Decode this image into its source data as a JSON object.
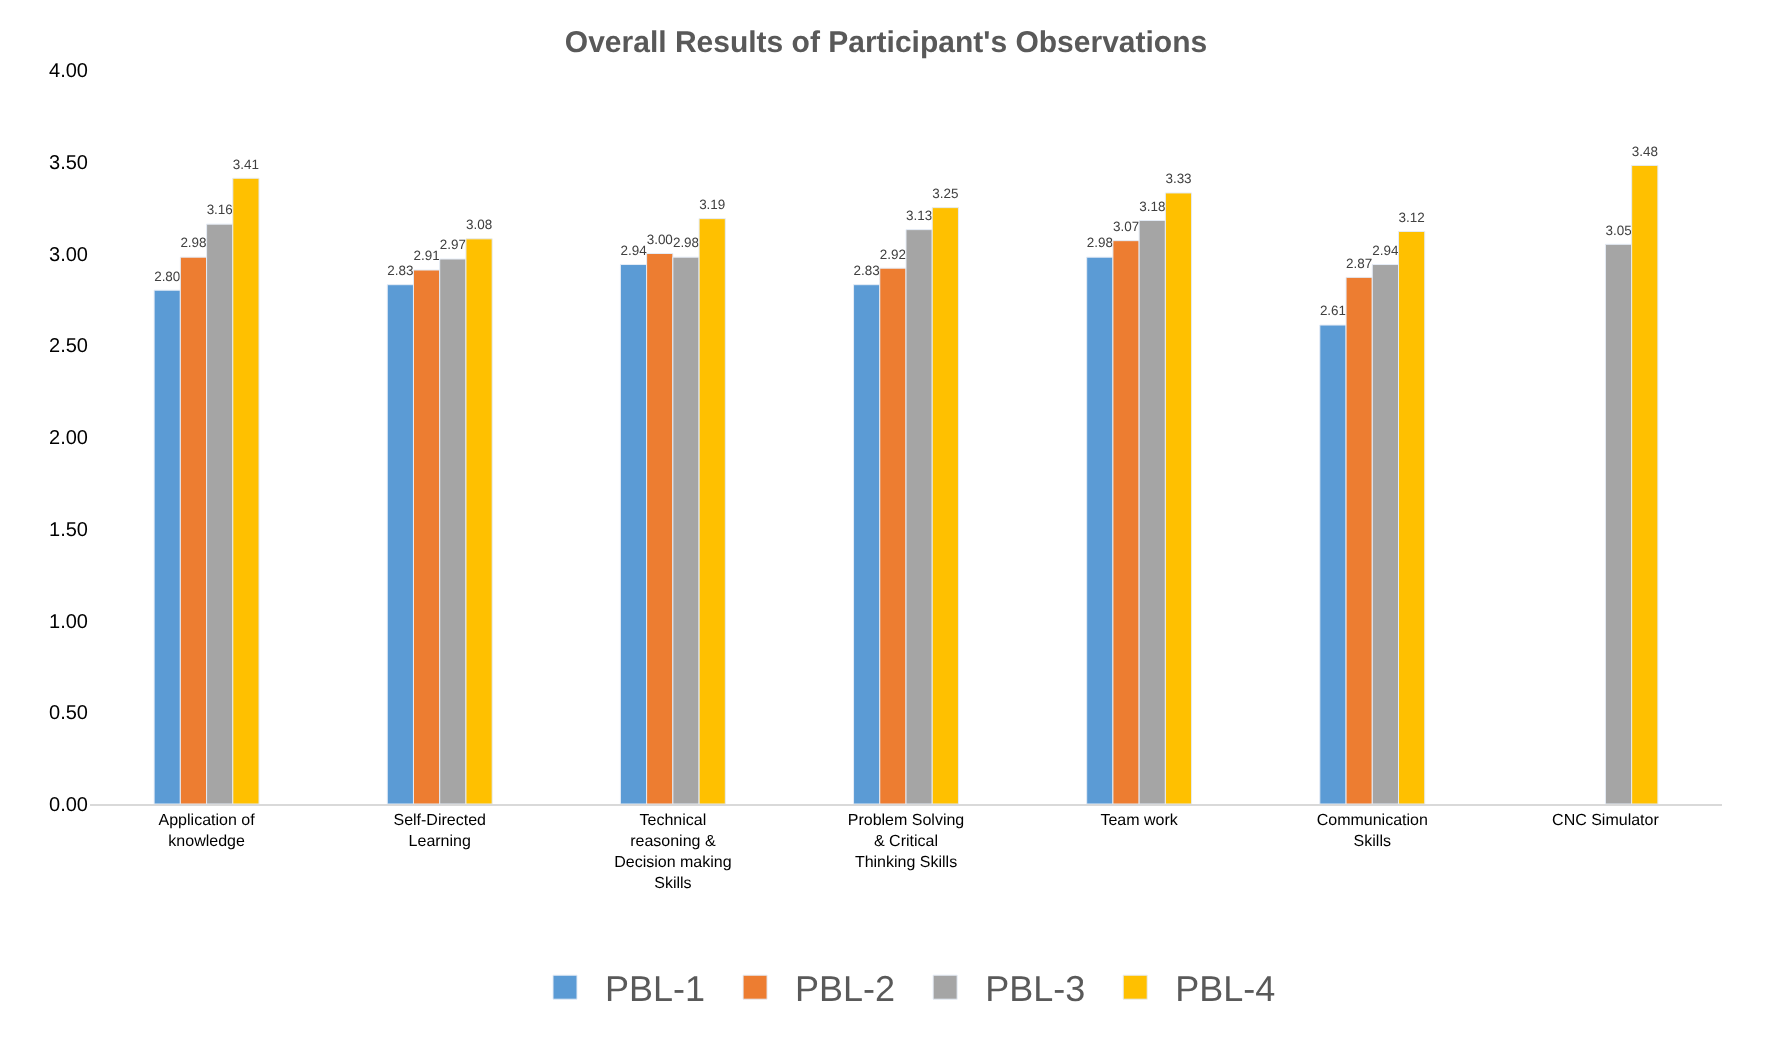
{
  "chart_data": {
    "type": "bar",
    "title": "Overall Results of Participant's Observations",
    "categories": [
      "Application of knowledge",
      "Self-Directed Learning",
      "Technical reasoning & Decision making Skills",
      "Problem Solving & Critical Thinking Skills",
      "Team work",
      "Communication Skills",
      "CNC Simulator"
    ],
    "series": [
      {
        "name": "PBL-1",
        "color": "#5b9bd5",
        "values": [
          2.8,
          2.83,
          2.94,
          2.83,
          2.98,
          2.61,
          null
        ],
        "value_labels": [
          "2.80",
          "2.83",
          "2.94",
          "2.83",
          "2.98",
          "2.61",
          null
        ]
      },
      {
        "name": "PBL-2",
        "color": "#ed7d31",
        "values": [
          2.98,
          2.91,
          3.0,
          2.92,
          3.07,
          2.87,
          null
        ],
        "value_labels": [
          "2.98",
          "2.91",
          "3.00",
          "2.92",
          "3.07",
          "2.87",
          null
        ]
      },
      {
        "name": "PBL-3",
        "color": "#a5a5a5",
        "values": [
          3.16,
          2.97,
          2.98,
          3.13,
          3.18,
          2.94,
          3.05
        ],
        "value_labels": [
          "3.16",
          "2.97",
          "2.98",
          "3.13",
          "3.18",
          "2.94",
          "3.05"
        ]
      },
      {
        "name": "PBL-4",
        "color": "#ffc000",
        "values": [
          3.41,
          3.08,
          3.19,
          3.25,
          3.33,
          3.12,
          3.48
        ],
        "value_labels": [
          "3.41",
          "3.08",
          "3.19",
          "3.25",
          "3.33",
          "3.12",
          "3.48"
        ]
      }
    ],
    "ylim": [
      0,
      4
    ],
    "yticks": [
      {
        "value": 0,
        "label": "0.00"
      },
      {
        "value": 0.5,
        "label": "0.50"
      },
      {
        "value": 1,
        "label": "1.00"
      },
      {
        "value": 1.5,
        "label": "1.50"
      },
      {
        "value": 2,
        "label": "2.00"
      },
      {
        "value": 2.5,
        "label": "2.50"
      },
      {
        "value": 3,
        "label": "3.00"
      },
      {
        "value": 3.5,
        "label": "3.50"
      },
      {
        "value": 4,
        "label": "4.00"
      }
    ],
    "legend": "bottom"
  }
}
